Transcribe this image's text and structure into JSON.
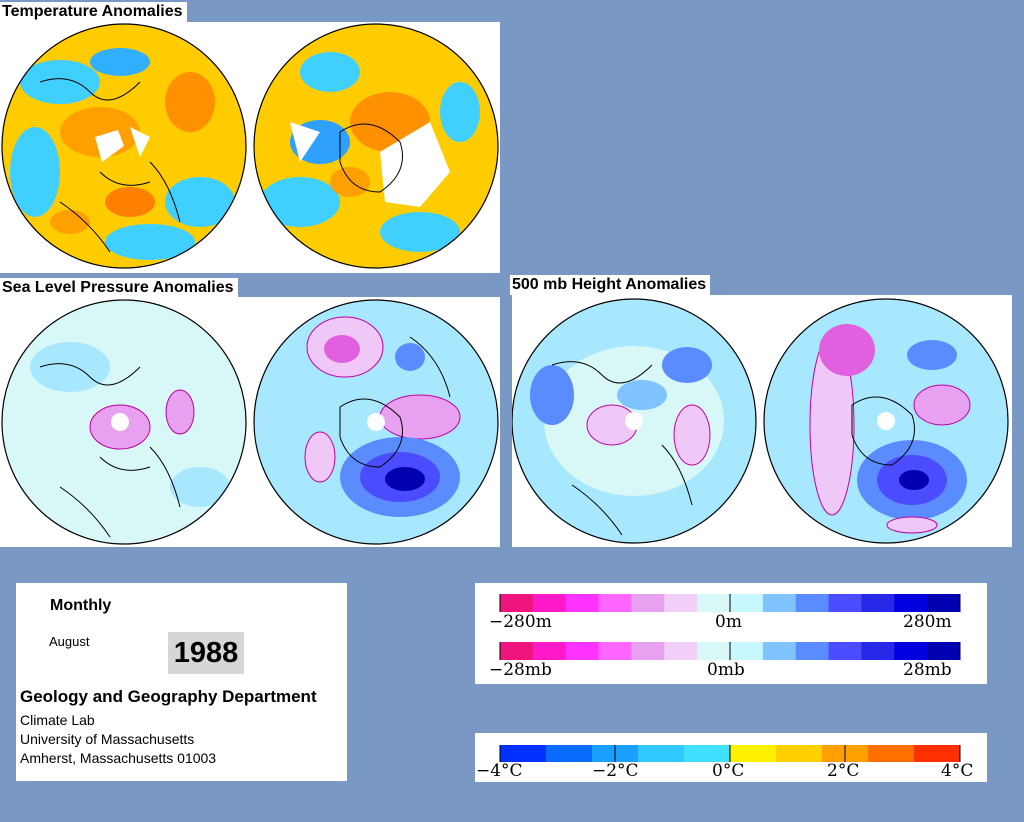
{
  "sections": {
    "temperature_title": "Temperature Anomalies",
    "slp_title": "Sea Level Pressure Anomalies",
    "height_title": "500 mb Height Anomalies"
  },
  "info": {
    "period": "Monthly",
    "month": "August",
    "year": "1988",
    "department": "Geology and Geography Department",
    "lab": "Climate Lab",
    "university": "University of Massachusetts",
    "address": "Amherst, Massachusetts 01003"
  },
  "legends": {
    "height": {
      "left": "−280m",
      "mid": "0m",
      "right": "280m"
    },
    "pressure": {
      "left": "−28mb",
      "mid": "0mb",
      "right": "28mb"
    },
    "temperature": {
      "l2": "−4°C",
      "l1": "−2°C",
      "mid": "0°C",
      "r1": "2°C",
      "r2": "4°C"
    }
  },
  "colors": {
    "background": "#7a98c4",
    "pressure_height_scale": [
      "#f0157e",
      "#ff19c8",
      "#ff33ff",
      "#ff66ff",
      "#e8a0f0",
      "#f0d0f8",
      "#d8f8f8",
      "#c8f8ff",
      "#7fc4ff",
      "#5a8cff",
      "#4b4bff",
      "#2828e8",
      "#0000e0",
      "#0000b0"
    ],
    "temperature_scale": [
      "#0030ff",
      "#0a6cff",
      "#1aa0ff",
      "#30c8ff",
      "#40e0ff",
      "#fff000",
      "#ffd000",
      "#ffa000",
      "#ff7000",
      "#ff3000"
    ]
  }
}
